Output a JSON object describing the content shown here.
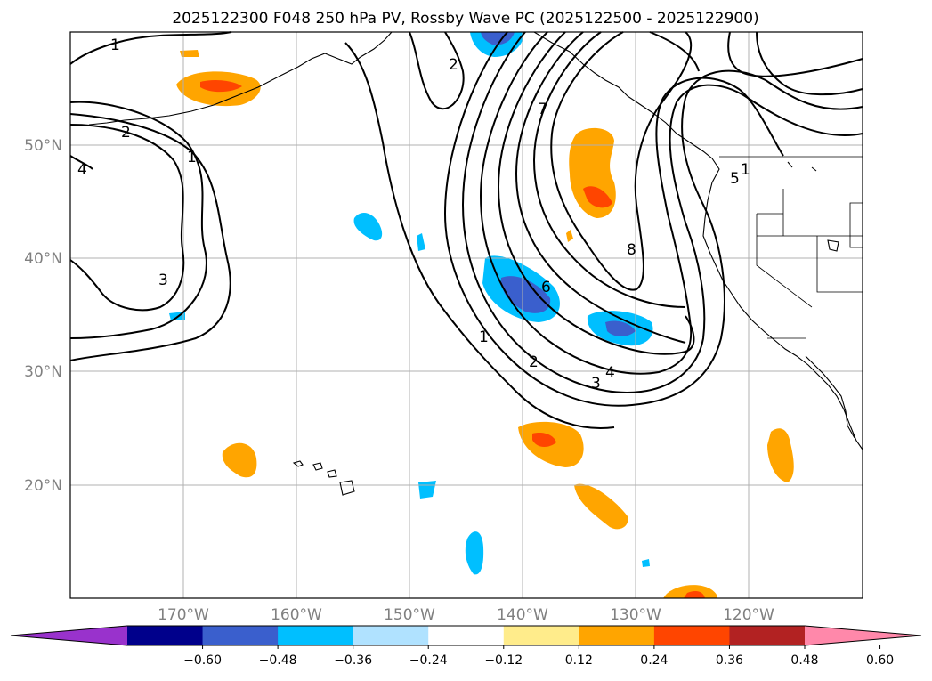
{
  "title": "2025122300 F048 250 hPa PV, Rossby Wave PC (2025122500 - 2025122900)",
  "map": {
    "lat_labels": [
      "50°N",
      "40°N",
      "30°N",
      "20°N"
    ],
    "lon_labels": [
      "170°W",
      "160°W",
      "150°W",
      "140°W",
      "130°W",
      "120°W"
    ]
  },
  "contour_labels": [
    "1",
    "2",
    "4",
    "1",
    "2",
    "3",
    "7",
    "8",
    "6",
    "5",
    "1",
    "1",
    "2",
    "4",
    "3"
  ],
  "colorbar": {
    "ticks": [
      "−0.60",
      "−0.48",
      "−0.36",
      "−0.24",
      "−0.12",
      "0.12",
      "0.24",
      "0.36",
      "0.48",
      "0.60"
    ],
    "colors": [
      "#9932cc",
      "#00008b",
      "#3a5fcd",
      "#00bfff",
      "#b0e2ff",
      "#ffffff",
      "#ffec8b",
      "#ffa500",
      "#ff4500",
      "#b22222",
      "#ff88aa"
    ]
  }
}
